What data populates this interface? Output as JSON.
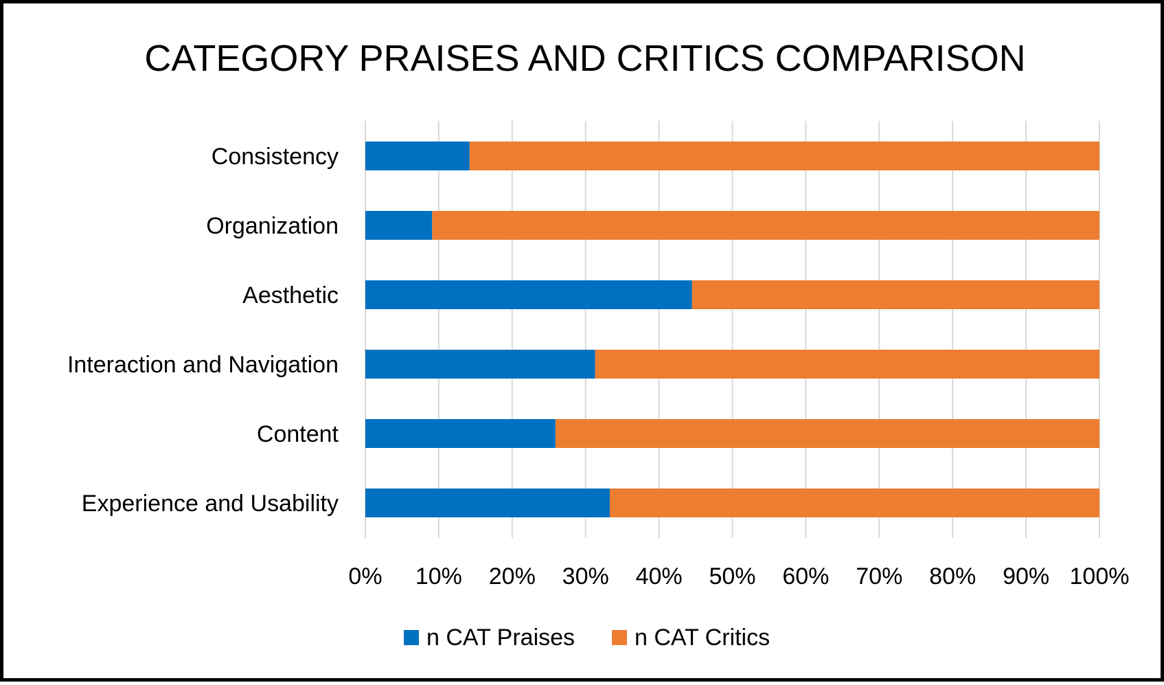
{
  "chart_data": {
    "type": "bar",
    "orientation": "horizontal",
    "stacking": "percent",
    "title": "CATEGORY PRAISES AND CRITICS COMPARISON",
    "categories": [
      "Consistency",
      "Organization",
      "Aesthetic",
      "Interaction and Navigation",
      "Content",
      "Experience and Usability"
    ],
    "series": [
      {
        "name": "n CAT Praises",
        "color": "#0070C0",
        "values": [
          14.2,
          9.1,
          44.5,
          31.3,
          25.9,
          33.3
        ]
      },
      {
        "name": "n CAT Critics",
        "color": "#ED7D31",
        "values": [
          85.8,
          90.9,
          55.5,
          68.7,
          74.1,
          66.7
        ]
      }
    ],
    "xlim": [
      0,
      100
    ],
    "xticks": [
      "0%",
      "10%",
      "20%",
      "30%",
      "40%",
      "50%",
      "60%",
      "70%",
      "80%",
      "90%",
      "100%"
    ],
    "xlabel": "",
    "ylabel": "",
    "grid": true,
    "legend": "bottom"
  }
}
